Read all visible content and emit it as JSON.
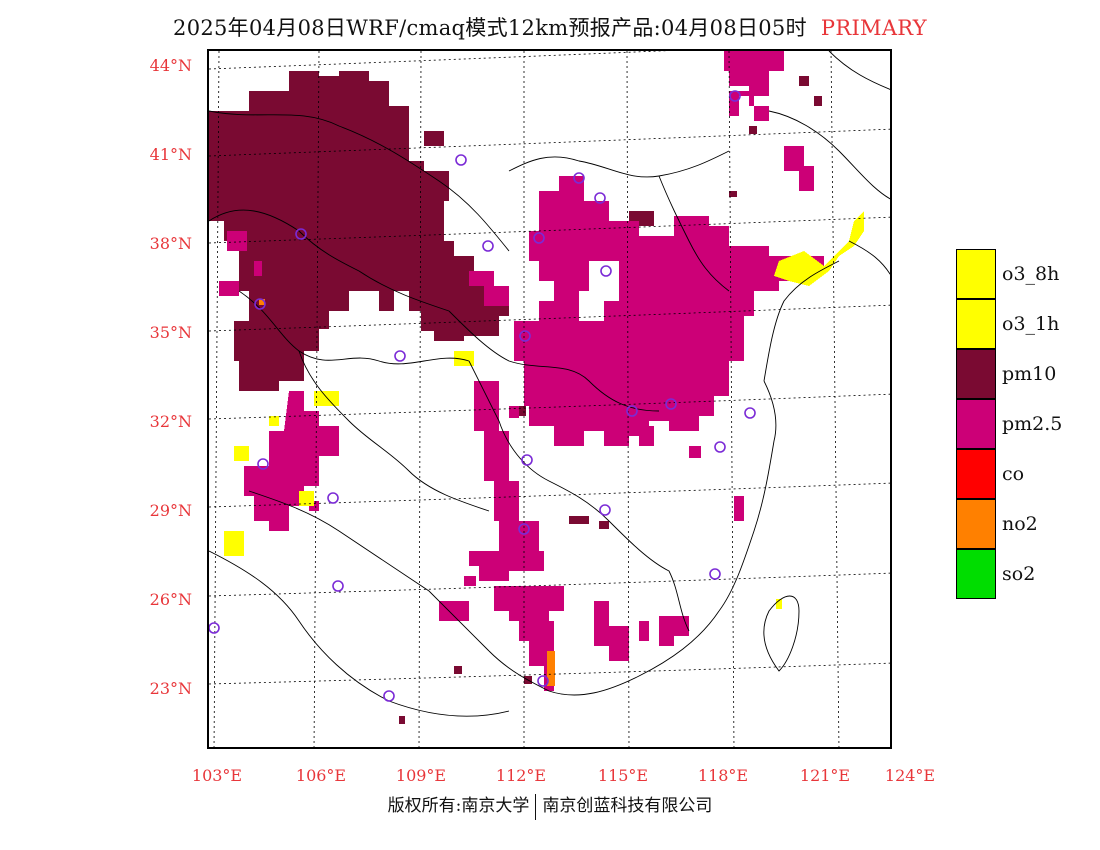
{
  "header": {
    "title": "2025年04月08日WRF/cmaq模式12km预报产品:04月08日05时",
    "tag": "PRIMARY"
  },
  "map": {
    "lat_labels": [
      "44°N",
      "41°N",
      "38°N",
      "35°N",
      "32°N",
      "29°N",
      "26°N",
      "23°N"
    ],
    "lon_labels": [
      "103°E",
      "106°E",
      "109°E",
      "112°E",
      "115°E",
      "118°E",
      "121°E",
      "124°E"
    ],
    "pollutant_colors": {
      "pm10": "#7a0a32",
      "pm2.5": "#cc0077",
      "o3": "#ffff00",
      "no2": "#ff8000"
    },
    "station_marker_color": "#7b2bd6"
  },
  "legend": {
    "items": [
      {
        "label": "o3_8h",
        "color": "#ffff00"
      },
      {
        "label": "o3_1h",
        "color": "#ffff00"
      },
      {
        "label": "pm10",
        "color": "#7a0a32"
      },
      {
        "label": "pm2.5",
        "color": "#cc0077"
      },
      {
        "label": "co",
        "color": "#ff0000"
      },
      {
        "label": "no2",
        "color": "#ff8000"
      },
      {
        "label": "so2",
        "color": "#00dd00"
      }
    ]
  },
  "footer": {
    "left": "版权所有:南京大学",
    "right": "南京创蓝科技有限公司"
  }
}
